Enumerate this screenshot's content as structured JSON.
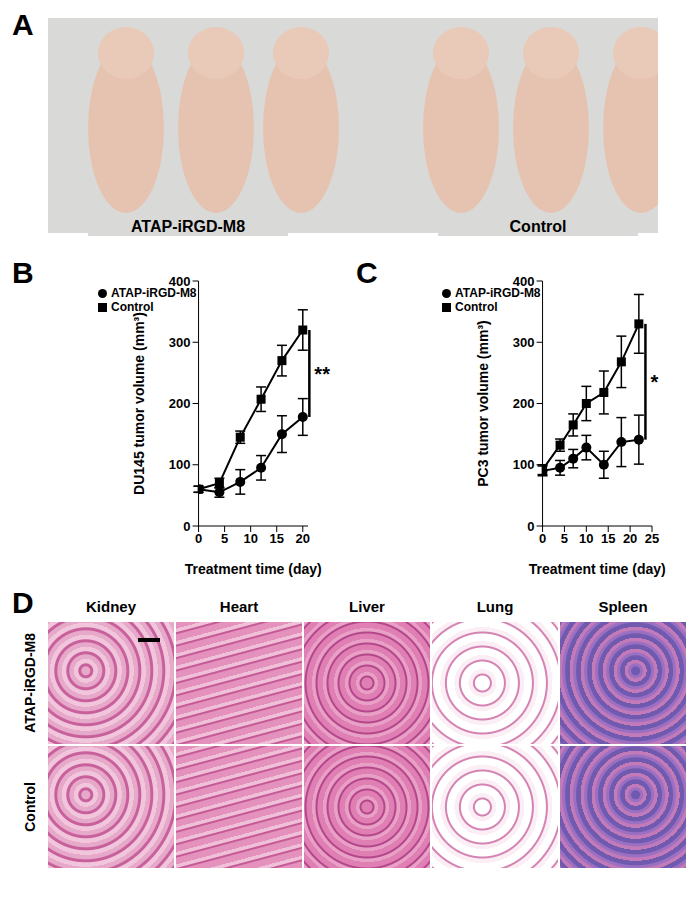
{
  "panel_A": {
    "panel_label": "A",
    "groups": [
      "ATAP-iRGD-M8",
      "Control"
    ]
  },
  "chart_data": [
    {
      "panel_label": "B",
      "type": "line",
      "xlabel": "Treatment time (day)",
      "ylabel": "DU145 tumor volume (mm³)",
      "x": [
        0,
        4,
        8,
        12,
        16,
        20
      ],
      "series": [
        {
          "name": "Control",
          "color": "#000000",
          "marker": "square",
          "values": [
            60,
            70,
            145,
            207,
            270,
            320
          ],
          "errors": [
            5,
            8,
            10,
            20,
            25,
            33
          ]
        },
        {
          "name": "ATAP-iRGD-M8",
          "color": "#000000",
          "marker": "circle",
          "values": [
            60,
            55,
            72,
            95,
            150,
            178
          ],
          "errors": [
            5,
            8,
            20,
            20,
            30,
            30
          ]
        }
      ],
      "xlim": [
        0,
        21
      ],
      "xticks": [
        0,
        5,
        10,
        15,
        20
      ],
      "ylim": [
        0,
        400
      ],
      "yticks": [
        0,
        100,
        200,
        300,
        400
      ],
      "legend": "upper left",
      "annotation": "**"
    },
    {
      "panel_label": "C",
      "type": "line",
      "xlabel": "Treatment time (day)",
      "ylabel": "PC3 tumor volume (mm³)",
      "x": [
        0,
        4,
        7,
        10,
        14,
        18,
        22
      ],
      "series": [
        {
          "name": "Control",
          "color": "#000000",
          "marker": "square",
          "values": [
            92,
            132,
            165,
            200,
            218,
            268,
            330
          ],
          "errors": [
            8,
            10,
            18,
            28,
            35,
            42,
            48
          ]
        },
        {
          "name": "ATAP-iRGD-M8",
          "color": "#000000",
          "marker": "circle",
          "values": [
            90,
            95,
            110,
            128,
            100,
            137,
            141
          ],
          "errors": [
            8,
            12,
            15,
            20,
            22,
            40,
            40
          ]
        }
      ],
      "xlim": [
        0,
        25
      ],
      "xticks": [
        0,
        5,
        10,
        15,
        20,
        25
      ],
      "ylim": [
        0,
        400
      ],
      "yticks": [
        0,
        100,
        200,
        300,
        400
      ],
      "legend": "upper left",
      "annotation": "*"
    }
  ],
  "panel_D": {
    "panel_label": "D",
    "columns": [
      "Kidney",
      "Heart",
      "Liver",
      "Lung",
      "Spleen"
    ],
    "rows": [
      "ATAP-iRGD-M8",
      "Control"
    ]
  }
}
